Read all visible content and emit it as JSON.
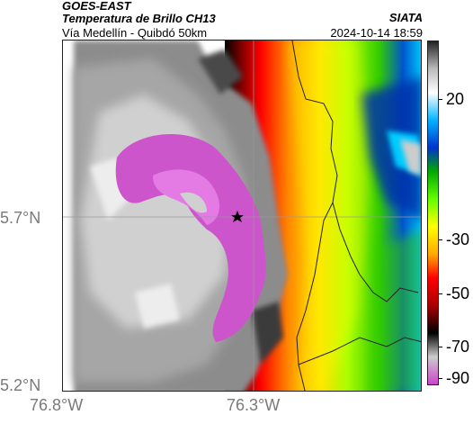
{
  "header": {
    "satellite": "GOES-EAST",
    "product": "Temperatura de Brillo CH13",
    "subtitle": "Vía Medellín - Quibdó 50km",
    "organization": "SIATA",
    "timestamp": "2024-10-14 18:59"
  },
  "map": {
    "lat_labels": [
      "5.7°N",
      "5.2°N"
    ],
    "lon_labels": [
      "76.8°W",
      "76.3°W"
    ],
    "marker": "star-icon",
    "field_description": "brightness temperature field (colored)"
  },
  "colorbar": {
    "ticks": [
      "20",
      "-30",
      "-50",
      "-70",
      "-90"
    ],
    "colors": [
      "#222222",
      "#bbbbbb",
      "#ffffff",
      "#00b4ff",
      "#0033cc",
      "#00aa00",
      "#66ff00",
      "#ffff00",
      "#ffaa00",
      "#ff0000",
      "#aa0000",
      "#000000",
      "#cccccc",
      "#cc44cc"
    ]
  }
}
